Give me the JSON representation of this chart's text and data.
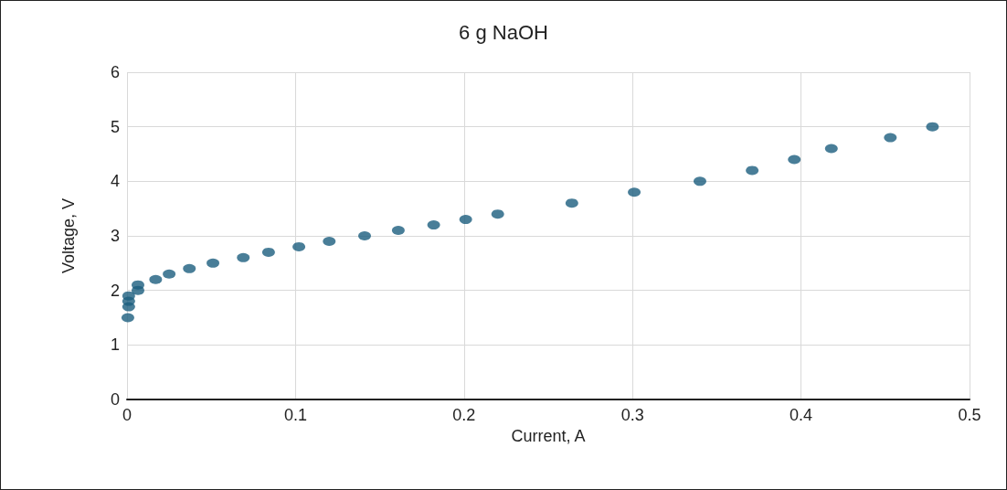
{
  "chart_data": {
    "type": "scatter",
    "title": "6 g NaOH",
    "xlabel": "Current, A",
    "ylabel": "Voltage, V",
    "x": [
      0.0005,
      0.001,
      0.001,
      0.001,
      0.0065,
      0.0065,
      0.017,
      0.025,
      0.037,
      0.051,
      0.069,
      0.084,
      0.102,
      0.12,
      0.141,
      0.161,
      0.182,
      0.201,
      0.22,
      0.264,
      0.301,
      0.34,
      0.371,
      0.396,
      0.418,
      0.453,
      0.478
    ],
    "values": [
      1.5,
      1.7,
      1.8,
      1.9,
      2.0,
      2.1,
      2.2,
      2.3,
      2.4,
      2.5,
      2.6,
      2.7,
      2.8,
      2.9,
      3.0,
      3.1,
      3.2,
      3.3,
      3.4,
      3.6,
      3.8,
      4.0,
      4.2,
      4.4,
      4.6,
      4.8,
      5.0
    ],
    "color": "#1b5e7e",
    "marker": "circle",
    "grid": true,
    "xlim": [
      0,
      0.5
    ],
    "xticks": [
      0,
      0.1,
      0.2,
      0.3,
      0.4,
      0.5
    ],
    "ylim": [
      0,
      6
    ],
    "yticks": [
      0,
      1,
      2,
      3,
      4,
      5,
      6
    ]
  }
}
